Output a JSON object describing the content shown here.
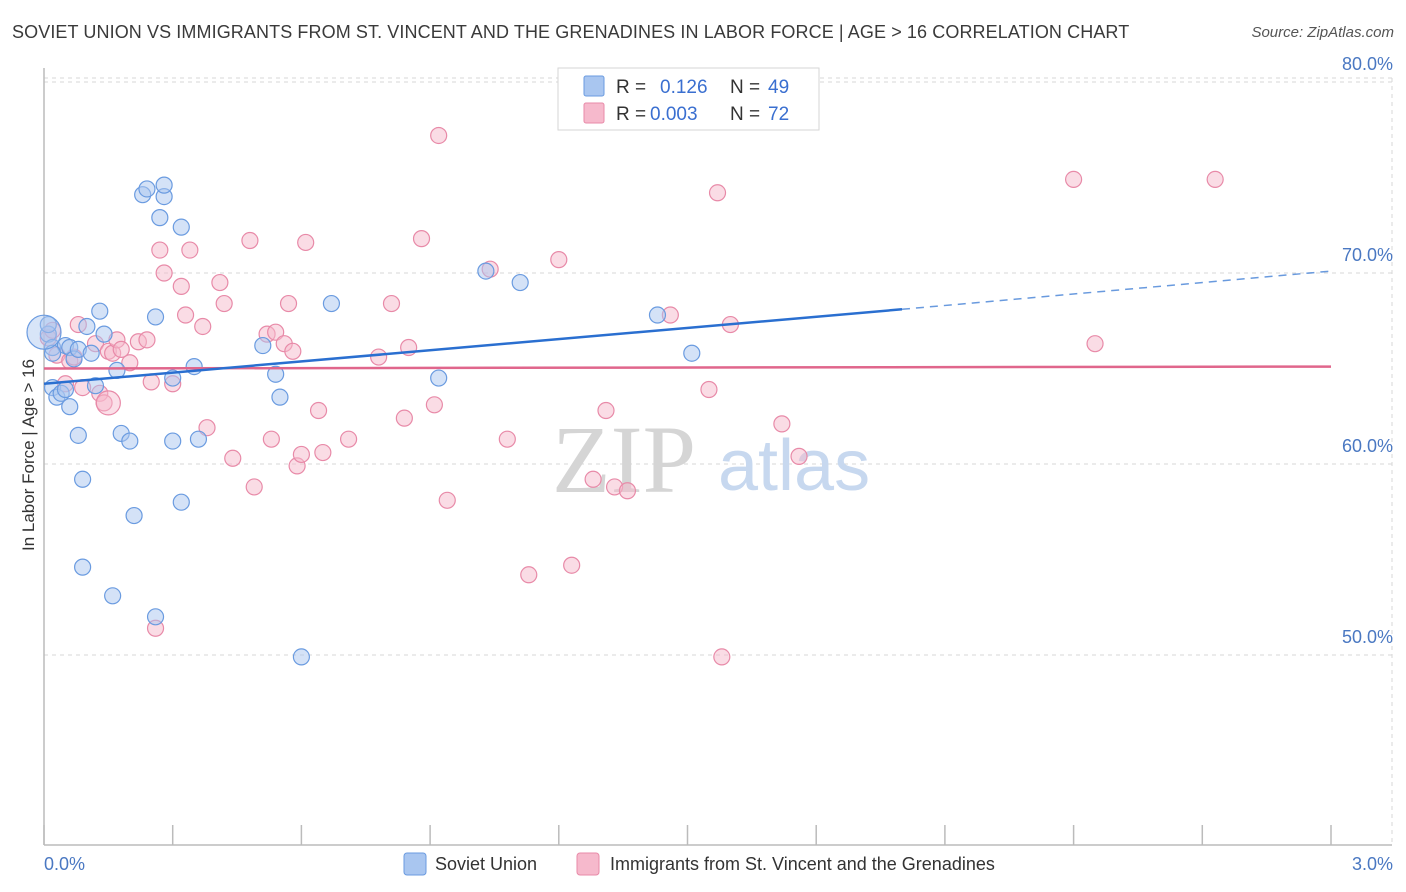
{
  "title": "SOVIET UNION VS IMMIGRANTS FROM ST. VINCENT AND THE GRENADINES IN LABOR FORCE | AGE > 16 CORRELATION CHART",
  "source": "Source: ZipAtlas.com",
  "watermark": {
    "zip": "ZIP",
    "atlas": "atlas"
  },
  "legend": {
    "r_label": "R =",
    "n_label": "N =",
    "rows": [
      {
        "r": "0.126",
        "n": "49",
        "color": "#a9c6f0"
      },
      {
        "r": "0.003",
        "n": "72",
        "color": "#f6b9cc"
      }
    ]
  },
  "colors": {
    "blue_fill": "#a9c6f0",
    "blue_stroke": "#6a9be0",
    "blue_line": "#2a6fd0",
    "pink_fill": "#f6b9cc",
    "pink_stroke": "#e88aa8",
    "pink_line": "#e0668c",
    "grid": "#d7d7d7",
    "axis": "#bbbbbb",
    "tick_label": "#4a78c2"
  },
  "chart_data": {
    "type": "scatter",
    "title": "SOVIET UNION VS IMMIGRANTS FROM ST. VINCENT AND THE GRENADINES IN LABOR FORCE | AGE > 16 CORRELATION CHART",
    "xlabel": "",
    "ylabel": "In Labor Force | Age > 16",
    "xlim": [
      0.0,
      3.0
    ],
    "ylim": [
      40.0,
      82.0
    ],
    "x_tick_labels": [
      "0.0%",
      "3.0%"
    ],
    "y_ticks": [
      50,
      60,
      70,
      80
    ],
    "y_tick_labels": [
      "50.0%",
      "60.0%",
      "70.0%",
      "80.0%"
    ],
    "series": [
      {
        "name": "Soviet Union",
        "color": "#a9c6f0",
        "points": [
          [
            0.01,
            66.8
          ],
          [
            0.02,
            66.1
          ],
          [
            0.02,
            64.0
          ],
          [
            0.03,
            63.5
          ],
          [
            0.04,
            63.7
          ],
          [
            0.05,
            66.2
          ],
          [
            0.06,
            66.1
          ],
          [
            0.06,
            63.0
          ],
          [
            0.07,
            65.5
          ],
          [
            0.08,
            66.0
          ],
          [
            0.08,
            61.5
          ],
          [
            0.09,
            59.2
          ],
          [
            0.09,
            54.6
          ],
          [
            0.1,
            67.2
          ],
          [
            0.11,
            65.8
          ],
          [
            0.12,
            64.1
          ],
          [
            0.13,
            68.0
          ],
          [
            0.14,
            66.8
          ],
          [
            0.16,
            53.1
          ],
          [
            0.17,
            64.9
          ],
          [
            0.18,
            61.6
          ],
          [
            0.2,
            61.2
          ],
          [
            0.21,
            57.3
          ],
          [
            0.23,
            74.1
          ],
          [
            0.24,
            74.4
          ],
          [
            0.26,
            67.7
          ],
          [
            0.26,
            52.0
          ],
          [
            0.27,
            72.9
          ],
          [
            0.28,
            74.0
          ],
          [
            0.28,
            74.6
          ],
          [
            0.3,
            61.2
          ],
          [
            0.3,
            64.5
          ],
          [
            0.32,
            58.0
          ],
          [
            0.32,
            72.4
          ],
          [
            0.35,
            65.1
          ],
          [
            0.36,
            61.3
          ],
          [
            0.51,
            66.2
          ],
          [
            0.54,
            64.7
          ],
          [
            0.55,
            63.5
          ],
          [
            0.6,
            49.9
          ],
          [
            0.67,
            68.4
          ],
          [
            0.92,
            64.5
          ],
          [
            1.03,
            70.1
          ],
          [
            1.11,
            69.5
          ],
          [
            1.43,
            67.8
          ],
          [
            1.51,
            65.8
          ],
          [
            0.02,
            65.8
          ],
          [
            0.01,
            67.3
          ],
          [
            0.05,
            63.9
          ]
        ]
      },
      {
        "name": "Immigrants from St. Vincent and the Grenadines",
        "color": "#f6b9cc",
        "points": [
          [
            0.01,
            66.6
          ],
          [
            0.02,
            67.0
          ],
          [
            0.03,
            65.7
          ],
          [
            0.05,
            64.2
          ],
          [
            0.06,
            65.4
          ],
          [
            0.08,
            67.3
          ],
          [
            0.09,
            64.0
          ],
          [
            0.12,
            66.3
          ],
          [
            0.13,
            63.7
          ],
          [
            0.14,
            63.2
          ],
          [
            0.15,
            65.9
          ],
          [
            0.16,
            65.8
          ],
          [
            0.17,
            66.5
          ],
          [
            0.18,
            66.0
          ],
          [
            0.2,
            65.3
          ],
          [
            0.22,
            66.4
          ],
          [
            0.24,
            66.5
          ],
          [
            0.25,
            64.3
          ],
          [
            0.26,
            51.4
          ],
          [
            0.27,
            71.2
          ],
          [
            0.28,
            70.0
          ],
          [
            0.3,
            64.2
          ],
          [
            0.32,
            69.3
          ],
          [
            0.33,
            67.8
          ],
          [
            0.34,
            71.2
          ],
          [
            0.37,
            67.2
          ],
          [
            0.38,
            61.9
          ],
          [
            0.41,
            69.5
          ],
          [
            0.42,
            68.4
          ],
          [
            0.44,
            60.3
          ],
          [
            0.48,
            71.7
          ],
          [
            0.49,
            58.8
          ],
          [
            0.52,
            66.8
          ],
          [
            0.53,
            61.3
          ],
          [
            0.54,
            66.9
          ],
          [
            0.56,
            66.3
          ],
          [
            0.57,
            68.4
          ],
          [
            0.58,
            65.9
          ],
          [
            0.59,
            59.9
          ],
          [
            0.6,
            60.5
          ],
          [
            0.61,
            71.6
          ],
          [
            0.64,
            62.8
          ],
          [
            0.65,
            60.6
          ],
          [
            0.71,
            61.3
          ],
          [
            0.78,
            65.6
          ],
          [
            0.81,
            68.4
          ],
          [
            0.84,
            62.4
          ],
          [
            0.85,
            66.1
          ],
          [
            0.88,
            71.8
          ],
          [
            0.91,
            63.1
          ],
          [
            0.92,
            77.2
          ],
          [
            0.94,
            58.1
          ],
          [
            1.04,
            70.2
          ],
          [
            1.08,
            61.3
          ],
          [
            1.13,
            54.2
          ],
          [
            1.2,
            70.7
          ],
          [
            1.23,
            54.7
          ],
          [
            1.28,
            59.2
          ],
          [
            1.31,
            62.8
          ],
          [
            1.33,
            58.8
          ],
          [
            1.36,
            58.6
          ],
          [
            1.46,
            67.8
          ],
          [
            1.55,
            63.9
          ],
          [
            1.57,
            74.2
          ],
          [
            1.58,
            49.9
          ],
          [
            1.6,
            67.3
          ],
          [
            1.72,
            62.1
          ],
          [
            1.76,
            60.4
          ],
          [
            2.4,
            74.9
          ],
          [
            2.45,
            66.3
          ],
          [
            2.73,
            74.9
          ],
          [
            0.07,
            65.6
          ]
        ]
      }
    ],
    "trend_lines": [
      {
        "series": "Soviet Union",
        "solid": [
          [
            0.0,
            64.2
          ],
          [
            2.0,
            68.1
          ]
        ],
        "dashed": [
          [
            2.0,
            68.1
          ],
          [
            3.0,
            70.1
          ]
        ]
      },
      {
        "series": "Immigrants from St. Vincent and the Grenadines",
        "solid": [
          [
            0.0,
            65.0
          ],
          [
            3.0,
            65.1
          ]
        ]
      }
    ]
  }
}
